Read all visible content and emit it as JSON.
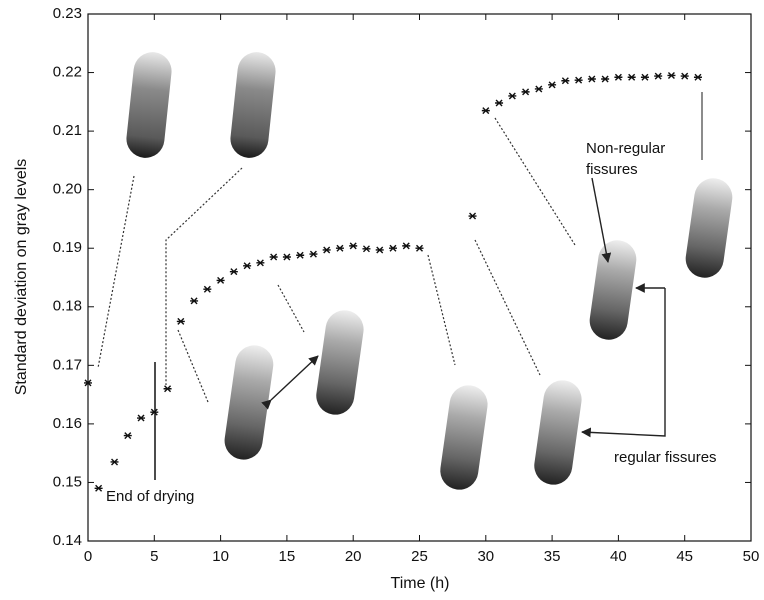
{
  "chart_data": {
    "type": "scatter",
    "x_label": "Time (h)",
    "y_label": "Standard deviation on gray levels",
    "x": [
      0,
      0.8,
      2,
      3,
      4,
      5,
      6,
      7,
      8,
      9,
      10,
      11,
      12,
      13,
      14,
      15,
      16,
      17,
      18,
      19,
      20,
      21,
      22,
      23,
      24,
      25,
      29,
      30,
      31,
      32,
      33,
      34,
      35,
      36,
      37,
      38,
      39,
      40,
      41,
      42,
      43,
      44,
      45,
      46
    ],
    "values": [
      0.167,
      0.149,
      0.1535,
      0.158,
      0.161,
      0.162,
      0.166,
      0.1775,
      0.181,
      0.183,
      0.1845,
      0.186,
      0.187,
      0.1875,
      0.1885,
      0.1885,
      0.1888,
      0.189,
      0.1897,
      0.19,
      0.1904,
      0.1899,
      0.1897,
      0.19,
      0.1904,
      0.19,
      0.1955,
      0.2135,
      0.2148,
      0.216,
      0.2167,
      0.2172,
      0.2179,
      0.2186,
      0.2187,
      0.2189,
      0.2189,
      0.2192,
      0.2192,
      0.2192,
      0.2194,
      0.2195,
      0.2194,
      0.2192
    ],
    "color": "#111111",
    "xlim": [
      0,
      50
    ],
    "xticks": [
      0,
      5,
      10,
      15,
      20,
      25,
      30,
      35,
      40,
      45,
      50
    ],
    "ylim": [
      0.14,
      0.23
    ],
    "yticks": [
      0.14,
      0.15,
      0.16,
      0.17,
      0.18,
      0.19,
      {
        "value": 0.2,
        "label": "0.20"
      },
      0.21,
      0.22,
      0.23
    ],
    "grid": false,
    "annotations": [
      "End of drying",
      "Non-regular",
      "fissures",
      "regular fissures"
    ]
  }
}
